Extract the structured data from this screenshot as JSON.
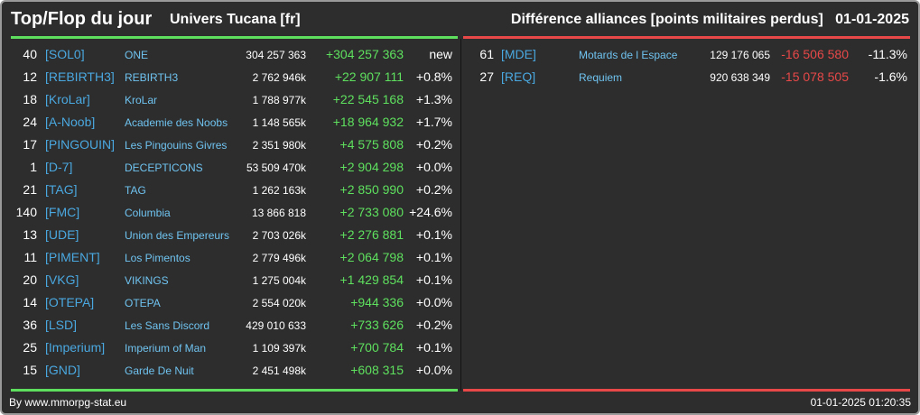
{
  "header": {
    "title": "Top/Flop du jour",
    "universe": "Univers Tucana [fr]",
    "description": "Différence alliances [points militaires perdus]",
    "date": "01-01-2025"
  },
  "colors": {
    "top": "#5ee05e",
    "flop": "#e84848",
    "tag": "#4aa8e0"
  },
  "top": [
    {
      "rank": "40",
      "tag": "[SOL0]",
      "name": "ONE",
      "points": "304 257 363",
      "diff": "+304 257 363",
      "pct": "new"
    },
    {
      "rank": "12",
      "tag": "[REBIRTH3]",
      "name": "REBIRTH3",
      "points": "2 762 946k",
      "diff": "+22 907 111",
      "pct": "+0.8%"
    },
    {
      "rank": "18",
      "tag": "[KroLar]",
      "name": "KroLar",
      "points": "1 788 977k",
      "diff": "+22 545 168",
      "pct": "+1.3%"
    },
    {
      "rank": "24",
      "tag": "[A-Noob]",
      "name": "Academie des Noobs",
      "points": "1 148 565k",
      "diff": "+18 964 932",
      "pct": "+1.7%"
    },
    {
      "rank": "17",
      "tag": "[PINGOUIN]",
      "name": "Les Pingouins Givres",
      "points": "2 351 980k",
      "diff": "+4 575 808",
      "pct": "+0.2%"
    },
    {
      "rank": "1",
      "tag": "[D-7]",
      "name": "DECEPTICONS",
      "points": "53 509 470k",
      "diff": "+2 904 298",
      "pct": "+0.0%"
    },
    {
      "rank": "21",
      "tag": "[TAG]",
      "name": "TAG",
      "points": "1 262 163k",
      "diff": "+2 850 990",
      "pct": "+0.2%"
    },
    {
      "rank": "140",
      "tag": "[FMC]",
      "name": "Columbia",
      "points": "13 866 818",
      "diff": "+2 733 080",
      "pct": "+24.6%"
    },
    {
      "rank": "13",
      "tag": "[UDE]",
      "name": "Union des Empereurs",
      "points": "2 703 026k",
      "diff": "+2 276 881",
      "pct": "+0.1%"
    },
    {
      "rank": "11",
      "tag": "[PIMENT]",
      "name": "Los Pimentos",
      "points": "2 779 496k",
      "diff": "+2 064 798",
      "pct": "+0.1%"
    },
    {
      "rank": "20",
      "tag": "[VKG]",
      "name": "VIKINGS",
      "points": "1 275 004k",
      "diff": "+1 429 854",
      "pct": "+0.1%"
    },
    {
      "rank": "14",
      "tag": "[OTEPA]",
      "name": "OTEPA",
      "points": "2 554 020k",
      "diff": "+944 336",
      "pct": "+0.0%"
    },
    {
      "rank": "36",
      "tag": "[LSD]",
      "name": "Les Sans Discord",
      "points": "429 010 633",
      "diff": "+733 626",
      "pct": "+0.2%"
    },
    {
      "rank": "25",
      "tag": "[Imperium]",
      "name": "Imperium of Man",
      "points": "1 109 397k",
      "diff": "+700 784",
      "pct": "+0.1%"
    },
    {
      "rank": "15",
      "tag": "[GND]",
      "name": "Garde De Nuit",
      "points": "2 451 498k",
      "diff": "+608 315",
      "pct": "+0.0%"
    }
  ],
  "flop": [
    {
      "rank": "61",
      "tag": "[MDE]",
      "name": "Motards de l Espace",
      "points": "129 176 065",
      "diff": "-16 506 580",
      "pct": "-11.3%"
    },
    {
      "rank": "27",
      "tag": "[REQ]",
      "name": "Requiem",
      "points": "920 638 349",
      "diff": "-15 078 505",
      "pct": "-1.6%"
    }
  ],
  "footer": {
    "credit": "By www.mmorpg-stat.eu",
    "timestamp": "01-01-2025 01:20:35"
  }
}
